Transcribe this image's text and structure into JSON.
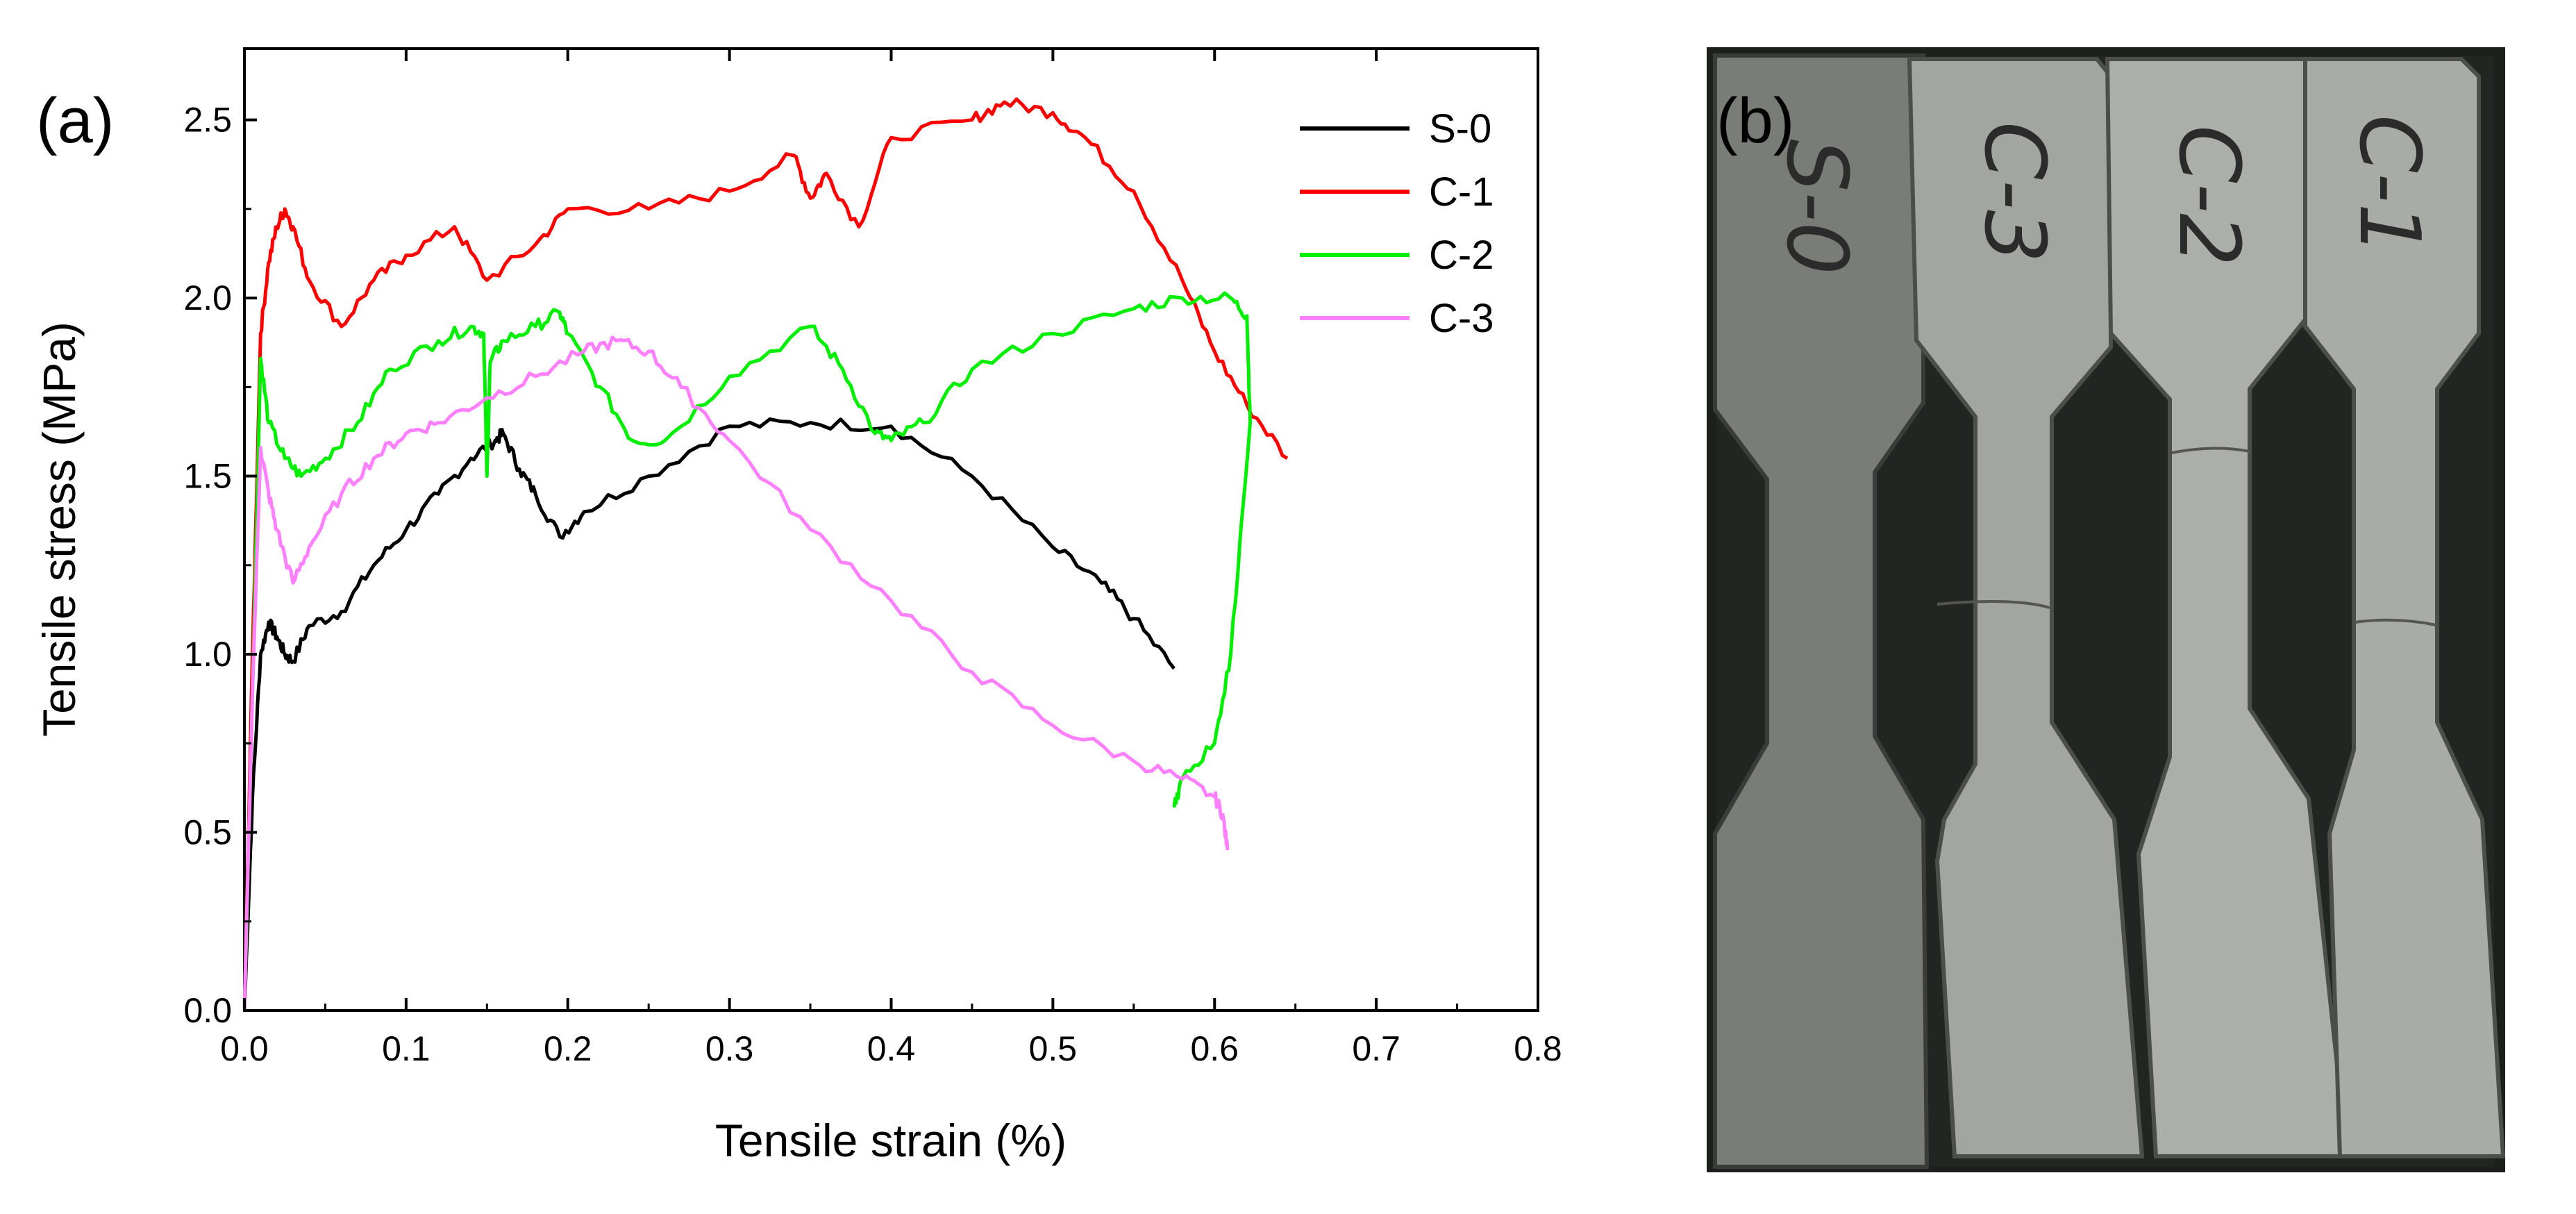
{
  "figure": {
    "panel_a_label": "(a)",
    "panel_b_label": "(b)"
  },
  "chart_data": {
    "type": "line",
    "title": "",
    "xlabel": "Tensile strain (%)",
    "ylabel": "Tensile stress (MPa)",
    "xlim": [
      0.0,
      0.8
    ],
    "ylim": [
      0.0,
      2.7
    ],
    "xticks": [
      "0.0",
      "0.1",
      "0.2",
      "0.3",
      "0.4",
      "0.5",
      "0.6",
      "0.7",
      "0.8"
    ],
    "yticks": [
      "0.0",
      "0.5",
      "1.0",
      "1.5",
      "2.0",
      "2.5"
    ],
    "xtick_values": [
      0.0,
      0.1,
      0.2,
      0.3,
      0.4,
      0.5,
      0.6,
      0.7,
      0.8
    ],
    "ytick_values": [
      0.0,
      0.5,
      1.0,
      1.5,
      2.0,
      2.5
    ],
    "grid": false,
    "legend_position": "top-right",
    "series": [
      {
        "name": "S-0",
        "color": "#000000",
        "x": [
          0.0,
          0.005,
          0.01,
          0.015,
          0.02,
          0.025,
          0.03,
          0.04,
          0.06,
          0.08,
          0.1,
          0.12,
          0.14,
          0.155,
          0.16,
          0.17,
          0.18,
          0.195,
          0.21,
          0.25,
          0.3,
          0.35,
          0.4,
          0.45,
          0.5,
          0.53,
          0.55,
          0.575
        ],
        "values": [
          0.0,
          0.6,
          1.0,
          1.09,
          1.05,
          1.0,
          0.98,
          1.08,
          1.12,
          1.25,
          1.35,
          1.45,
          1.55,
          1.6,
          1.62,
          1.52,
          1.45,
          1.33,
          1.4,
          1.5,
          1.64,
          1.65,
          1.64,
          1.5,
          1.3,
          1.2,
          1.1,
          0.96
        ]
      },
      {
        "name": "C-1",
        "color": "#ff0000",
        "x": [
          0.0,
          0.005,
          0.01,
          0.015,
          0.02,
          0.025,
          0.03,
          0.04,
          0.06,
          0.08,
          0.1,
          0.13,
          0.15,
          0.18,
          0.2,
          0.25,
          0.3,
          0.34,
          0.35,
          0.36,
          0.38,
          0.4,
          0.45,
          0.47,
          0.5,
          0.52,
          0.55,
          0.58,
          0.6,
          0.62,
          0.645
        ],
        "values": [
          0.0,
          1.0,
          1.9,
          2.1,
          2.2,
          2.25,
          2.2,
          2.05,
          1.92,
          2.05,
          2.12,
          2.2,
          2.05,
          2.15,
          2.25,
          2.25,
          2.3,
          2.4,
          2.28,
          2.35,
          2.2,
          2.45,
          2.5,
          2.55,
          2.52,
          2.45,
          2.3,
          2.05,
          1.85,
          1.7,
          1.55
        ]
      },
      {
        "name": "C-2",
        "color": "#00ee00",
        "x": [
          0.0,
          0.005,
          0.01,
          0.015,
          0.025,
          0.035,
          0.05,
          0.07,
          0.09,
          0.12,
          0.14,
          0.148,
          0.15,
          0.152,
          0.16,
          0.18,
          0.195,
          0.2,
          0.22,
          0.24,
          0.26,
          0.3,
          0.35,
          0.37,
          0.39,
          0.4,
          0.42,
          0.45,
          0.5,
          0.55,
          0.58,
          0.61,
          0.62,
          0.622,
          0.61,
          0.6,
          0.58,
          0.575
        ],
        "values": [
          0.0,
          0.9,
          1.83,
          1.65,
          1.55,
          1.5,
          1.55,
          1.65,
          1.8,
          1.88,
          1.92,
          1.9,
          1.5,
          1.82,
          1.88,
          1.92,
          1.96,
          1.9,
          1.75,
          1.6,
          1.6,
          1.78,
          1.92,
          1.8,
          1.62,
          1.6,
          1.65,
          1.8,
          1.9,
          1.97,
          2.0,
          2.0,
          1.95,
          1.65,
          1.0,
          0.75,
          0.65,
          0.57
        ]
      },
      {
        "name": "C-3",
        "color": "#ff80ff",
        "x": [
          0.0,
          0.005,
          0.01,
          0.015,
          0.02,
          0.03,
          0.04,
          0.06,
          0.08,
          0.1,
          0.12,
          0.15,
          0.18,
          0.21,
          0.23,
          0.25,
          0.27,
          0.3,
          0.35,
          0.4,
          0.45,
          0.5,
          0.55,
          0.58,
          0.6,
          0.605,
          0.608
        ],
        "values": [
          0.0,
          0.9,
          1.58,
          1.45,
          1.35,
          1.2,
          1.3,
          1.45,
          1.55,
          1.62,
          1.65,
          1.72,
          1.78,
          1.85,
          1.88,
          1.85,
          1.75,
          1.6,
          1.35,
          1.15,
          0.95,
          0.8,
          0.7,
          0.65,
          0.6,
          0.55,
          0.45
        ]
      }
    ]
  },
  "photo": {
    "specimen_labels": [
      "S-0",
      "C-3",
      "C-2",
      "C-1"
    ]
  }
}
